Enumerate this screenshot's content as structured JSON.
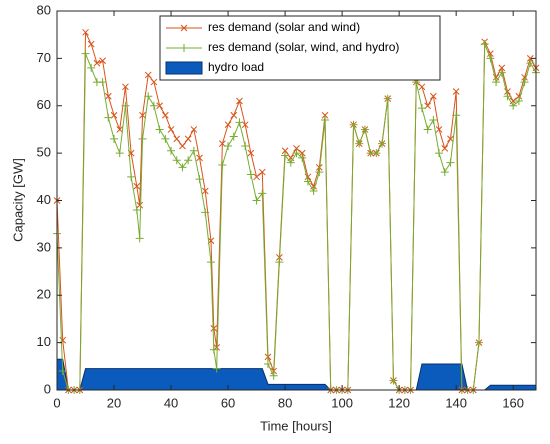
{
  "chart_data": {
    "type": "line",
    "xlabel": "Time [hours]",
    "ylabel": "Capacity [GW]",
    "x": [
      0,
      2,
      4,
      6,
      8,
      10,
      12,
      14,
      16,
      18,
      20,
      22,
      24,
      26,
      28,
      29,
      30,
      32,
      34,
      36,
      38,
      40,
      42,
      44,
      46,
      48,
      50,
      52,
      54,
      55,
      56,
      58,
      60,
      62,
      64,
      66,
      68,
      70,
      72,
      74,
      76,
      78,
      80,
      82,
      84,
      86,
      88,
      90,
      92,
      94,
      96,
      98,
      100,
      102,
      104,
      106,
      108,
      110,
      112,
      114,
      116,
      118,
      120,
      122,
      124,
      126,
      128,
      130,
      132,
      134,
      136,
      138,
      140,
      142,
      144,
      146,
      148,
      150,
      152,
      154,
      156,
      158,
      160,
      162,
      164,
      166,
      168
    ],
    "series": [
      {
        "name": "res demand (solar and wind)",
        "color": "#d95319",
        "marker": "x",
        "values": [
          40,
          10.5,
          0,
          0,
          0,
          75.5,
          73,
          69,
          69.5,
          62,
          58,
          55,
          64,
          50,
          43,
          39,
          58,
          66.5,
          65,
          60,
          58,
          55,
          53,
          51.5,
          53,
          55,
          49,
          42,
          31.5,
          13,
          9,
          52,
          56,
          58,
          61,
          56,
          50,
          45,
          46,
          7,
          4,
          28,
          50.5,
          49,
          51,
          50,
          45,
          43,
          47,
          58,
          0,
          0,
          0,
          0,
          56,
          52,
          55,
          50,
          50,
          52,
          61.5,
          2,
          0,
          0,
          0,
          65,
          64,
          60,
          62,
          55,
          51,
          53,
          63,
          0,
          0,
          0,
          10,
          73.5,
          71,
          66,
          68,
          63,
          61,
          62,
          66,
          70,
          68
        ]
      },
      {
        "name": "res demand (solar, wind, and hydro)",
        "color": "#77ac30",
        "marker": "+",
        "values": [
          33,
          4,
          0,
          0,
          0,
          71,
          68,
          65,
          65,
          57.5,
          53,
          50,
          60,
          45,
          38,
          32,
          53,
          62,
          60,
          55,
          53,
          50.5,
          48.5,
          47,
          48.5,
          50.5,
          44.5,
          37.5,
          27,
          8.5,
          4.5,
          47.5,
          51.5,
          53.5,
          56.5,
          51.5,
          45.5,
          40,
          41.5,
          5.5,
          3,
          27,
          49.5,
          48,
          50,
          49,
          44,
          42,
          46,
          57,
          0,
          0,
          0,
          0,
          56,
          52,
          55,
          50,
          50,
          52,
          61.5,
          2,
          0,
          0,
          0,
          65,
          59.5,
          55,
          57,
          50,
          46,
          48,
          58,
          0,
          0,
          0,
          10,
          73,
          70,
          65,
          67,
          62,
          60,
          61,
          65,
          69,
          67
        ]
      },
      {
        "name": "hydro load",
        "color": "#0b5bbd",
        "type": "area",
        "values": [
          6.5,
          6.5,
          0,
          0,
          0,
          4.5,
          4.5,
          4.5,
          4.5,
          4.5,
          4.5,
          4.5,
          4.5,
          4.5,
          4.5,
          4.5,
          4.5,
          4.5,
          4.5,
          4.5,
          4.5,
          4.5,
          4.5,
          4.5,
          4.5,
          4.5,
          4.5,
          4.5,
          4.5,
          4.5,
          4.5,
          4.5,
          4.5,
          4.5,
          4.5,
          4.5,
          4.5,
          4.5,
          4.5,
          1.2,
          1.2,
          1.2,
          1.2,
          1.2,
          1.2,
          1.2,
          1.2,
          1.2,
          1.2,
          1.2,
          0,
          0,
          0,
          0,
          0,
          0,
          0,
          0,
          0,
          0,
          0,
          0,
          0,
          0,
          0,
          0,
          5.5,
          5.5,
          5.5,
          5.5,
          5.5,
          5.5,
          5.5,
          5.5,
          0,
          0,
          0,
          0,
          1,
          1,
          1,
          1,
          1,
          1,
          1,
          1,
          1
        ]
      }
    ],
    "xlim": [
      0,
      168
    ],
    "xticks": [
      0,
      20,
      40,
      60,
      80,
      100,
      120,
      140,
      160
    ],
    "ylim": [
      0,
      80
    ],
    "yticks": [
      0,
      10,
      20,
      30,
      40,
      50,
      60,
      70,
      80
    ],
    "legend": "top"
  }
}
